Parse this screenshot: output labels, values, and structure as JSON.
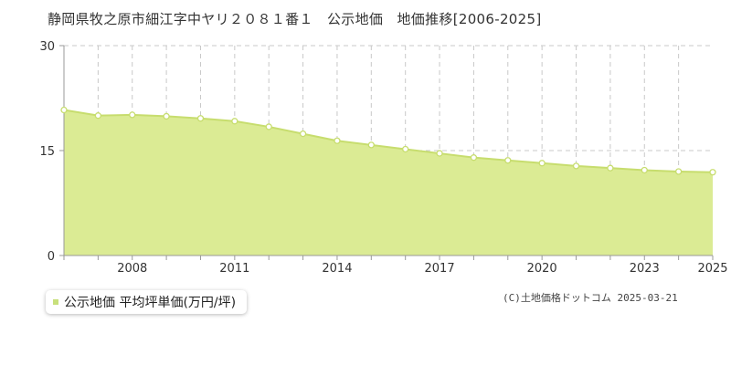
{
  "title": "静岡県牧之原市細江字中ヤリ２０８１番１　公示地価　地価推移[2006-2025]",
  "legend": {
    "label": "公示地価 平均坪単価(万円/坪)",
    "swatch_color": "#c8e07c"
  },
  "copyright": "(C)土地価格ドットコム 2025-03-21",
  "colors": {
    "area_fill": "#dbeb94",
    "line": "#c7dd6e",
    "marker_fill": "#ffffff",
    "grid": "#c8c8c8",
    "background": "#ffffff"
  },
  "chart_data": {
    "type": "area",
    "x": [
      2006,
      2007,
      2008,
      2009,
      2010,
      2011,
      2012,
      2013,
      2014,
      2015,
      2016,
      2017,
      2018,
      2019,
      2020,
      2021,
      2022,
      2023,
      2024,
      2025
    ],
    "series": [
      {
        "values": [
          20.8,
          20.0,
          20.1,
          19.9,
          19.6,
          19.2,
          18.4,
          17.4,
          16.4,
          15.8,
          15.2,
          14.6,
          14.0,
          13.6,
          13.2,
          12.8,
          12.5,
          12.2,
          12.0,
          11.9
        ]
      }
    ],
    "ylim": [
      0,
      30
    ],
    "yticks": [
      "0",
      "15",
      "30"
    ],
    "xticks": [
      "2008",
      "2011",
      "2014",
      "2017",
      "2020",
      "2023",
      "2025"
    ],
    "grid": true
  }
}
